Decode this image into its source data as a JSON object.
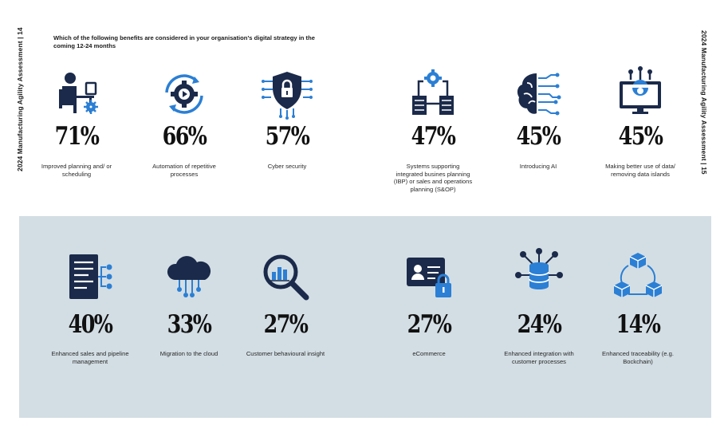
{
  "side_left": "2024 Manufacturing Agility Assessment | 14",
  "side_right": "2024 Manufacturing Agility Assessment | 15",
  "title": "Which of the following benefits are considered in your organisation's digital strategy in the coming 12-24 months",
  "colors": {
    "navy": "#1b2a4a",
    "blue": "#2b7fd4",
    "band": "#d3dee4"
  },
  "top_items": [
    {
      "percent": "71%",
      "label": "Improved planning and/ or scheduling",
      "icon": "worker-at-desk-icon"
    },
    {
      "percent": "66%",
      "label": "Automation of repetitive processes",
      "icon": "gear-cycle-icon"
    },
    {
      "percent": "57%",
      "label": "Cyber security",
      "icon": "shield-lock-icon"
    },
    {
      "percent": "47%",
      "label": "Systems supporting integrated busines planning (IBP) or sales and operations planning (S&OP)",
      "icon": "connected-servers-icon"
    },
    {
      "percent": "45%",
      "label": "Introducing AI",
      "icon": "ai-brain-icon"
    },
    {
      "percent": "45%",
      "label": "Making better use of data/ removing data islands",
      "icon": "monitor-gear-icon"
    }
  ],
  "bottom_items": [
    {
      "percent": "40%",
      "label": "Enhanced sales and pipeline management",
      "icon": "document-network-icon"
    },
    {
      "percent": "33%",
      "label": "Migration to the cloud",
      "icon": "cloud-network-icon"
    },
    {
      "percent": "27%",
      "label": "Customer behavioural insight",
      "icon": "magnifier-chart-icon"
    },
    {
      "percent": "27%",
      "label": "eCommerce",
      "icon": "id-card-lock-icon"
    },
    {
      "percent": "24%",
      "label": "Enhanced integration with customer processes",
      "icon": "database-network-icon"
    },
    {
      "percent": "14%",
      "label": "Enhanced traceability (e.g. Bockchain)",
      "icon": "blockchain-cubes-icon"
    }
  ]
}
